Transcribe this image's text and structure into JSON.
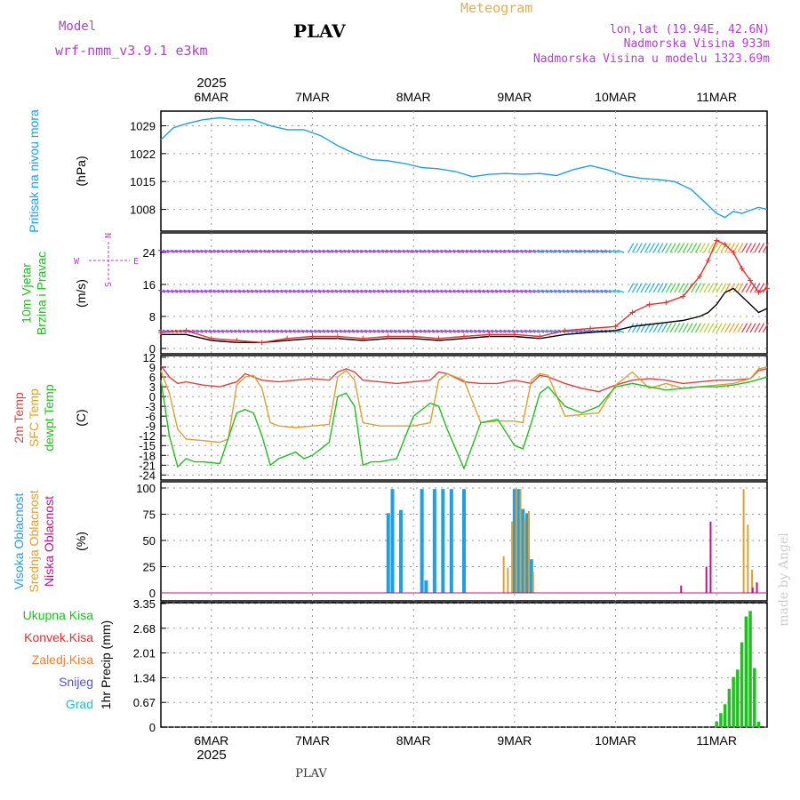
{
  "header": {
    "model_label": "Model",
    "model_name": "wrf-nmm_v3.9.1 e3km",
    "station": "PLAV",
    "chart_title": "Meteogram",
    "coords": "lon,lat (19.94E, 42.6N)",
    "elevation": "Nadmorska Visina 933m",
    "model_elevation": "Nadmorska Visina u modelu 1323.69m",
    "footer_station": "PLAV",
    "credit": "made by Angel"
  },
  "colors": {
    "pressure": "#1ea0e6",
    "wind_speed": "#000000",
    "wind_gust": "#e83030",
    "temp2m": "#e04040",
    "sfc_temp": "#e0a030",
    "dewpt": "#20c020",
    "cloud_high": "#1ea0e6",
    "cloud_mid": "#e0a030",
    "cloud_low": "#c0108a",
    "precip": "#20c020"
  },
  "chart_data": {
    "type": "line",
    "time_axis": {
      "year": "2025",
      "date_labels": [
        "6MAR",
        "7MAR",
        "8MAR",
        "9MAR",
        "10MAR",
        "11MAR"
      ],
      "start_hour": 0,
      "end_hour": 144,
      "label_hours": [
        12,
        36,
        60,
        84,
        108,
        132
      ]
    },
    "panels": [
      {
        "id": "pressure",
        "ylabel_lines": [
          "Pritisak na nivou mora"
        ],
        "unit": "(hPa)",
        "ylim": [
          1003,
          1032
        ],
        "yticks": [
          "1029",
          "1022",
          "1015",
          "1008"
        ],
        "ytick_values": [
          1029,
          1022,
          1015,
          1008
        ],
        "series": [
          {
            "name": "Pritisak na nivou mora",
            "x": [
              0,
              3,
              6,
              10,
              14,
              18,
              22,
              26,
              30,
              34,
              38,
              42,
              46,
              50,
              54,
              58,
              62,
              66,
              70,
              74,
              78,
              82,
              86,
              90,
              94,
              98,
              102,
              106,
              110,
              114,
              118,
              122,
              126,
              130,
              132,
              134,
              136,
              138,
              140,
              142,
              144
            ],
            "y": [
              1025.5,
              1028.5,
              1029.5,
              1030.5,
              1031.0,
              1030.5,
              1030.5,
              1029.0,
              1028.0,
              1028.0,
              1026.5,
              1024.0,
              1022.0,
              1020.5,
              1020.2,
              1019.5,
              1018.5,
              1018.2,
              1017.5,
              1016.2,
              1016.8,
              1017.0,
              1016.8,
              1017.0,
              1016.5,
              1018.0,
              1019.0,
              1018.0,
              1016.5,
              1015.8,
              1015.5,
              1015.0,
              1013.0,
              1009.0,
              1007.0,
              1006.0,
              1007.5,
              1007.0,
              1007.8,
              1008.5,
              1008.0
            ]
          }
        ]
      },
      {
        "id": "wind",
        "ylabel_lines": [
          "10m Vjetar",
          "Brzina i Pravac"
        ],
        "unit": "(m/s)",
        "compass": [
          "N",
          "S",
          "E",
          "W"
        ],
        "ylim": [
          0,
          28
        ],
        "yticks": [
          "24",
          "16",
          "8",
          "0"
        ],
        "ytick_values": [
          24,
          16,
          8,
          0
        ],
        "barb_levels": [
          24,
          14,
          4
        ],
        "series": [
          {
            "name": "Brzina",
            "x": [
              0,
              6,
              12,
              18,
              24,
              30,
              36,
              42,
              48,
              54,
              60,
              66,
              72,
              78,
              84,
              90,
              96,
              102,
              108,
              112,
              116,
              120,
              124,
              128,
              130,
              132,
              134,
              136,
              138,
              140,
              142,
              144
            ],
            "y": [
              3.5,
              3.5,
              2.0,
              1.5,
              1.5,
              2.0,
              2.5,
              2.5,
              2.0,
              2.5,
              2.5,
              2.0,
              2.5,
              3.0,
              3.0,
              2.5,
              3.5,
              4.0,
              4.5,
              5.5,
              6.0,
              6.5,
              7.0,
              8.0,
              9.0,
              11.0,
              14.0,
              15.0,
              13.0,
              11.0,
              9.0,
              10.0
            ]
          },
          {
            "name": "Udari",
            "x": [
              0,
              6,
              12,
              18,
              24,
              30,
              36,
              42,
              48,
              54,
              60,
              66,
              72,
              78,
              84,
              90,
              96,
              102,
              108,
              112,
              116,
              120,
              124,
              128,
              130,
              132,
              134,
              136,
              138,
              140,
              142,
              144
            ],
            "y": [
              4.0,
              4.5,
              2.5,
              2.0,
              1.5,
              2.5,
              3.0,
              3.0,
              2.5,
              3.0,
              3.0,
              2.5,
              3.0,
              3.5,
              3.5,
              3.0,
              4.5,
              5.0,
              5.5,
              9.0,
              11.0,
              11.5,
              13.0,
              18.0,
              22.0,
              27.0,
              26.0,
              24.0,
              20.0,
              17.0,
              14.0,
              15.0
            ]
          }
        ]
      },
      {
        "id": "temperature",
        "ylabel_lines": [
          "2m Temp",
          "SFC Temp",
          "dewpt Temp"
        ],
        "unit": "(C)",
        "ylim": [
          -25,
          12
        ],
        "yticks": [
          "12",
          "9",
          "6",
          "3",
          "0",
          "-3",
          "-6",
          "-9",
          "-12",
          "-15",
          "-18",
          "-21",
          "-24"
        ],
        "ytick_values": [
          12,
          9,
          6,
          3,
          0,
          -3,
          -6,
          -9,
          -12,
          -15,
          -18,
          -21,
          -24
        ],
        "series": [
          {
            "name": "2m Temp",
            "x": [
              0,
              2,
              4,
              6,
              10,
              14,
              18,
              20,
              24,
              28,
              32,
              36,
              40,
              42,
              44,
              46,
              48,
              52,
              56,
              60,
              64,
              66,
              68,
              72,
              76,
              80,
              84,
              88,
              90,
              92,
              96,
              100,
              104,
              108,
              112,
              116,
              120,
              124,
              128,
              132,
              136,
              140,
              142,
              144
            ],
            "y": [
              9.5,
              6.0,
              4.0,
              4.5,
              3.5,
              3.0,
              4.5,
              7.0,
              5.0,
              4.5,
              5.0,
              5.5,
              5.0,
              7.5,
              8.5,
              7.5,
              5.0,
              4.5,
              4.0,
              4.5,
              5.0,
              7.5,
              7.0,
              4.5,
              4.0,
              4.0,
              5.0,
              4.0,
              6.5,
              6.0,
              4.0,
              2.5,
              1.5,
              3.5,
              5.0,
              5.5,
              5.0,
              4.0,
              4.5,
              5.0,
              5.0,
              5.5,
              8.0,
              8.5
            ]
          },
          {
            "name": "SFC Temp",
            "x": [
              0,
              2,
              4,
              6,
              10,
              14,
              16,
              18,
              20,
              22,
              24,
              26,
              28,
              32,
              36,
              40,
              42,
              44,
              46,
              48,
              52,
              56,
              60,
              64,
              66,
              68,
              72,
              76,
              80,
              84,
              86,
              88,
              90,
              92,
              96,
              100,
              104,
              108,
              112,
              116,
              120,
              124,
              128,
              132,
              136,
              140,
              142,
              144
            ],
            "y": [
              8.0,
              1.0,
              -10.0,
              -13.0,
              -13.5,
              -14.0,
              -13.0,
              3.5,
              6.0,
              6.5,
              2.5,
              -8.0,
              -9.0,
              -9.5,
              -9.0,
              -8.5,
              6.0,
              8.0,
              5.0,
              -8.0,
              -9.0,
              -9.0,
              -9.0,
              -8.0,
              5.0,
              7.0,
              5.0,
              -8.0,
              -7.5,
              -7.5,
              -8.0,
              5.0,
              7.0,
              6.5,
              -6.0,
              -5.5,
              -5.0,
              3.5,
              7.5,
              2.5,
              4.0,
              2.5,
              3.0,
              3.5,
              4.0,
              5.5,
              8.5,
              9.0
            ]
          },
          {
            "name": "dewpt Temp",
            "x": [
              0,
              2,
              4,
              6,
              8,
              10,
              14,
              18,
              20,
              22,
              24,
              26,
              28,
              30,
              32,
              34,
              36,
              40,
              42,
              44,
              46,
              48,
              50,
              52,
              56,
              60,
              64,
              66,
              68,
              72,
              76,
              80,
              84,
              86,
              88,
              90,
              92,
              96,
              100,
              104,
              108,
              112,
              116,
              120,
              124,
              128,
              132,
              136,
              140,
              144
            ],
            "y": [
              5.0,
              -12.0,
              -21.5,
              -19.0,
              -20.0,
              -20.0,
              -20.5,
              -5.0,
              -4.0,
              -5.0,
              -12.0,
              -21.0,
              -19.0,
              -18.0,
              -17.0,
              -19.0,
              -18.0,
              -14.0,
              0.0,
              1.0,
              -3.0,
              -21.0,
              -20.0,
              -20.0,
              -19.0,
              -6.0,
              -2.0,
              -3.0,
              -10.0,
              -22.0,
              -8.0,
              -7.0,
              -15.0,
              -16.0,
              -8.0,
              1.0,
              3.0,
              -3.0,
              -5.0,
              -3.0,
              3.0,
              4.0,
              3.0,
              2.0,
              2.5,
              3.0,
              3.0,
              3.5,
              4.5,
              6.0
            ]
          }
        ]
      },
      {
        "id": "clouds",
        "ylabel_lines": [
          "Visoka Oblacnost",
          "Srednja Oblacnost",
          "Niska Oblacnost"
        ],
        "unit": "(%)",
        "ylim": [
          0,
          100
        ],
        "yticks": [
          "100",
          "75",
          "50",
          "25",
          "0"
        ],
        "ytick_values": [
          100,
          75,
          50,
          25,
          0
        ],
        "series": [
          {
            "name": "Visoka Oblacnost",
            "x": [
              54,
              55,
              57,
              62,
              63,
              65,
              67,
              69,
              72,
              84,
              85,
              86,
              87,
              88
            ],
            "values": [
              76,
              99,
              79,
              99,
              12,
              99,
              99,
              99,
              99,
              99,
              99,
              80,
              76,
              32
            ]
          },
          {
            "name": "Srednja Oblacnost",
            "x": [
              81,
              82,
              83,
              84,
              85,
              86,
              87,
              88,
              138,
              139,
              140
            ],
            "values": [
              35,
              24,
              68,
              99,
              99,
              70,
              78,
              20,
              99,
              65,
              22
            ]
          },
          {
            "name": "Niska Oblacnost",
            "x": [
              124,
              130,
              131,
              141,
              142
            ],
            "values": [
              7,
              25,
              68,
              5,
              10
            ]
          }
        ]
      },
      {
        "id": "precip",
        "ylabel_lines": [
          "Ukupna Kisa",
          "Konvek.Kisa",
          "Zaledj.Kisa",
          "Snijeg",
          "Grad"
        ],
        "unit": "1hr Precip (mm)",
        "ylim": [
          0,
          3.35
        ],
        "yticks": [
          "3.35",
          "2.68",
          "2.01",
          "1.34",
          "0.67",
          "0"
        ],
        "ytick_values": [
          3.35,
          2.68,
          2.01,
          1.34,
          0.67,
          0
        ],
        "series": [
          {
            "name": "Ukupna Kisa",
            "x": [
              132,
              133,
              134,
              135,
              136,
              137,
              138,
              139,
              140,
              141,
              142
            ],
            "values": [
              0.15,
              0.38,
              0.62,
              1.04,
              1.36,
              1.56,
              2.3,
              3.0,
              3.15,
              1.6,
              0.15
            ]
          }
        ]
      }
    ],
    "legend_colors": {
      "Pritisak na nivou mora": "#1ea0e6",
      "10m Vjetar": "#20c020",
      "Brzina i Pravac": "#20c020",
      "2m Temp": "#e04040",
      "SFC Temp": "#e0a030",
      "dewpt Temp": "#20c020",
      "Visoka Oblacnost": "#1ea0e6",
      "Srednja Oblacnost": "#e0a030",
      "Niska Oblacnost": "#c0108a",
      "Ukupna Kisa": "#20c020",
      "Konvek.Kisa": "#e83030",
      "Zaledj.Kisa": "#f08030",
      "Snijeg": "#5050e0",
      "Grad": "#20c0c0"
    }
  }
}
